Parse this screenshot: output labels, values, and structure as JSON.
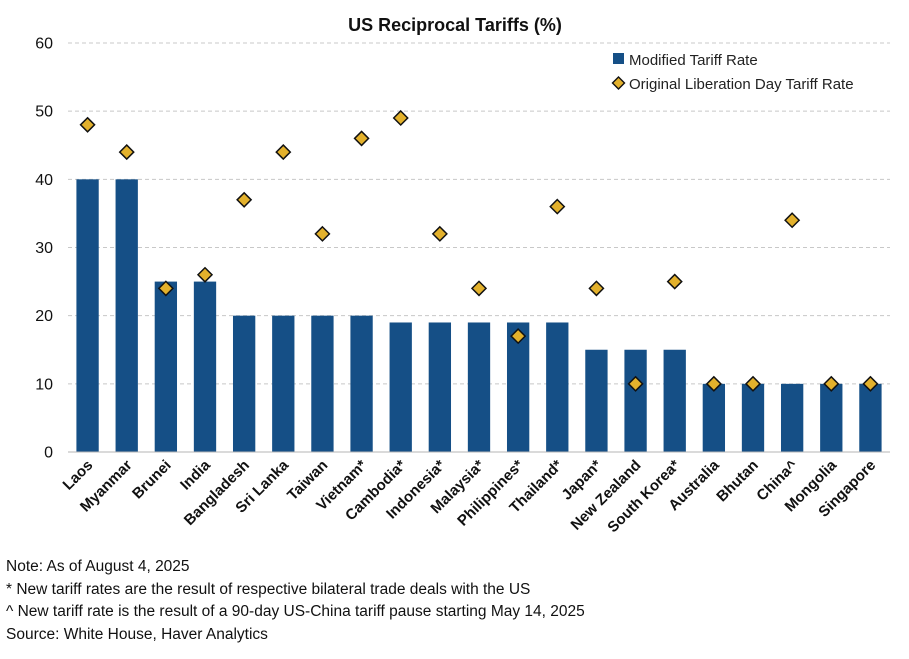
{
  "chart_data": {
    "type": "bar",
    "title": "US Reciprocal Tariffs (%)",
    "xlabel": "",
    "ylabel": "",
    "ylim": [
      0,
      60
    ],
    "yticks": [
      0,
      10,
      20,
      30,
      40,
      50,
      60
    ],
    "grid": true,
    "legend_position": "top-right",
    "categories": [
      "Laos",
      "Myanmar",
      "Brunei",
      "India",
      "Bangladesh",
      "Sri Lanka",
      "Taiwan",
      "Vietnam*",
      "Cambodia*",
      "Indonesia*",
      "Malaysia*",
      "Philippines*",
      "Thailand*",
      "Japan*",
      "New Zealand",
      "South Korea*",
      "Australia",
      "Bhutan",
      "China^",
      "Mongolia",
      "Singapore"
    ],
    "series": [
      {
        "name": "Modified Tariff Rate",
        "type": "bar",
        "color": "#154f86",
        "values": [
          40,
          40,
          25,
          25,
          20,
          20,
          20,
          20,
          19,
          19,
          19,
          19,
          19,
          15,
          15,
          15,
          10,
          10,
          10,
          10,
          10
        ]
      },
      {
        "name": "Original Liberation Day Tariff Rate",
        "type": "scatter",
        "marker": "diamond",
        "color": "#e3b12c",
        "values": [
          48,
          44,
          24,
          26,
          37,
          44,
          32,
          46,
          49,
          32,
          24,
          17,
          36,
          24,
          10,
          25,
          10,
          10,
          34,
          10,
          10
        ]
      }
    ]
  },
  "notes": {
    "note": "Note: As of August 4, 2025",
    "asterisk": "* New tariff rates are the result of respective bilateral trade deals with the US",
    "caret": "^ New tariff rate is the result of a 90-day US-China tariff pause starting May 14, 2025",
    "source": "Source: White House, Haver Analytics"
  }
}
